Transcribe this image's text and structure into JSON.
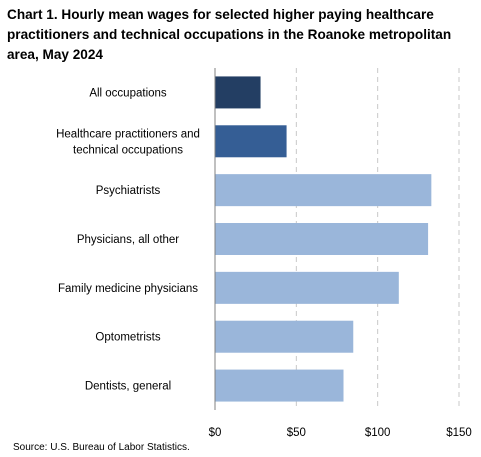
{
  "title": "Chart 1. Hourly mean wages for selected higher paying healthcare practitioners and technical occupations in the Roanoke metropolitan area, May 2024",
  "source": "Source: U.S. Bureau of Labor Statistics.",
  "chart_data": {
    "type": "bar",
    "orientation": "horizontal",
    "categories": [
      [
        "All occupations"
      ],
      [
        "Healthcare practitioners and",
        "technical occupations"
      ],
      [
        "Psychiatrists"
      ],
      [
        "Physicians, all other"
      ],
      [
        "Family medicine physicians"
      ],
      [
        "Optometrists"
      ],
      [
        "Dentists, general"
      ]
    ],
    "values": [
      28,
      44,
      133,
      131,
      113,
      85,
      79
    ],
    "bar_colors": [
      "#233e63",
      "#355e95",
      "#9ab6da",
      "#9ab6da",
      "#9ab6da",
      "#9ab6da",
      "#9ab6da"
    ],
    "xlim": [
      0,
      150
    ],
    "xticks": [
      0,
      50,
      100,
      150
    ],
    "xtick_labels": [
      "$0",
      "$50",
      "$100",
      "$150"
    ],
    "grid": "vertical-dashed",
    "legend": "none",
    "xlabel": "",
    "ylabel": ""
  }
}
